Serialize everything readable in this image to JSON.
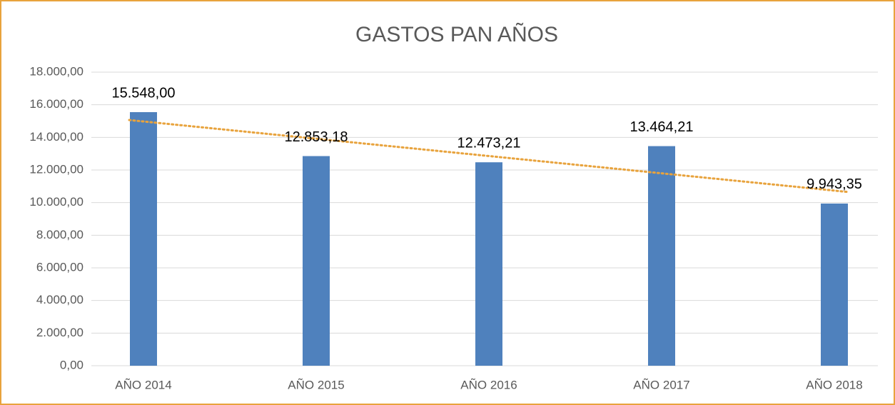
{
  "chart_data": {
    "type": "bar",
    "title": "GASTOS PAN AÑOS",
    "categories": [
      "AÑO 2014",
      "AÑO 2015",
      "AÑO 2016",
      "AÑO 2017",
      "AÑO 2018"
    ],
    "values": [
      15548.0,
      12853.18,
      12473.21,
      13464.21,
      9943.35
    ],
    "value_labels": [
      "15.548,00",
      "12.853,18",
      "12.473,21",
      "13.464,21",
      "9.943,35"
    ],
    "color": "#4f81bd",
    "ylim": [
      0,
      18000
    ],
    "yticks": [
      {
        "value": 0,
        "label": "0,00"
      },
      {
        "value": 2000,
        "label": "2.000,00"
      },
      {
        "value": 4000,
        "label": "4.000,00"
      },
      {
        "value": 6000,
        "label": "6.000,00"
      },
      {
        "value": 8000,
        "label": "8.000,00"
      },
      {
        "value": 10000,
        "label": "10.000,00"
      },
      {
        "value": 12000,
        "label": "12.000,00"
      },
      {
        "value": 14000,
        "label": "14.000,00"
      },
      {
        "value": 16000,
        "label": "16.000,00"
      },
      {
        "value": 18000,
        "label": "18.000,00"
      }
    ],
    "grid": true,
    "trendline": "linear",
    "trendline_color": "#e8a33d"
  }
}
